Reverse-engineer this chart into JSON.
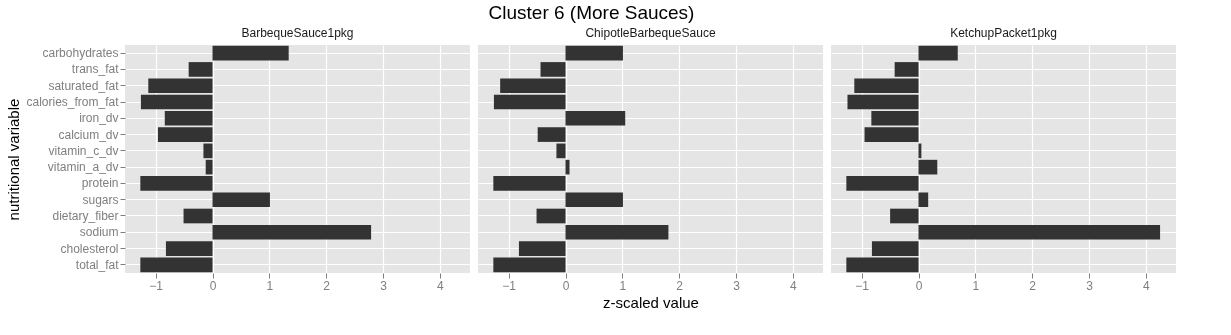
{
  "chart_data": [
    {
      "type": "bar",
      "subtitle": "BarbequeSauce1pkg",
      "ylabel": "nutritional variable",
      "orientation": "horizontal",
      "color": "#333333",
      "grid": true,
      "tick_labels": true,
      "categories": [
        "carbohydrates",
        "trans_fat",
        "saturated_fat",
        "calories_from_fat",
        "iron_dv",
        "calcium_dv",
        "vitamin_c_dv",
        "vitamin_a_dv",
        "protein",
        "sugars",
        "dietary_fiber",
        "sodium",
        "cholesterol",
        "total_fat"
      ],
      "values": [
        1.34,
        -0.42,
        -1.13,
        -1.26,
        -0.84,
        -0.96,
        -0.16,
        -0.12,
        -1.27,
        1.01,
        -0.51,
        2.79,
        -0.82,
        -1.27
      ],
      "xlim": [
        -1.54,
        4.53
      ],
      "xticks": [
        -1,
        0,
        1,
        2,
        3,
        4
      ]
    },
    {
      "type": "bar",
      "title": "Cluster 6 (More Sauces)",
      "subtitle": "ChipotleBarbequeSauce",
      "xlabel": "z-scaled value",
      "orientation": "horizontal",
      "color": "#333333",
      "grid": true,
      "tick_labels": "x",
      "categories": [
        "carbohydrates",
        "trans_fat",
        "saturated_fat",
        "calories_from_fat",
        "iron_dv",
        "calcium_dv",
        "vitamin_c_dv",
        "vitamin_a_dv",
        "protein",
        "sugars",
        "dietary_fiber",
        "sodium",
        "cholesterol",
        "total_fat"
      ],
      "values": [
        1.01,
        -0.44,
        -1.15,
        -1.26,
        1.05,
        -0.49,
        -0.16,
        0.07,
        -1.27,
        1.01,
        -0.51,
        1.81,
        -0.82,
        -1.27
      ],
      "xlim": [
        -1.54,
        4.53
      ],
      "xticks": [
        -1,
        0,
        1,
        2,
        3,
        4
      ]
    },
    {
      "type": "bar",
      "subtitle": "KetchupPacket1pkg",
      "orientation": "horizontal",
      "color": "#333333",
      "grid": true,
      "tick_labels": "x",
      "categories": [
        "carbohydrates",
        "trans_fat",
        "saturated_fat",
        "calories_from_fat",
        "iron_dv",
        "calcium_dv",
        "vitamin_c_dv",
        "vitamin_a_dv",
        "protein",
        "sugars",
        "dietary_fiber",
        "sodium",
        "cholesterol",
        "total_fat"
      ],
      "values": [
        0.69,
        -0.42,
        -1.13,
        -1.25,
        -0.83,
        -0.95,
        0.05,
        0.33,
        -1.27,
        0.17,
        -0.5,
        4.25,
        -0.82,
        -1.27
      ],
      "xlim": [
        -1.54,
        4.53
      ],
      "xticks": [
        -1,
        0,
        1,
        2,
        3,
        4
      ]
    }
  ]
}
